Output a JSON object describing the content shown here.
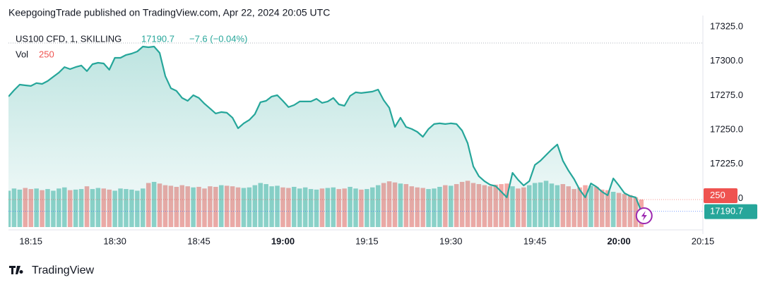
{
  "header": "KeepgoingTrade published on TradingView.com, Apr 22, 2024 20:05 UTC",
  "footer": "TradingView",
  "chart_data": {
    "type": "area",
    "symbol": "US100 CFD, 1, SKILLING",
    "change": "−7.6 (−0.04%)",
    "volume_label": "Vol",
    "color": "#26a69a",
    "up_color": "#8fd3ca",
    "down_color": "#f3a9a6",
    "volume_badge_color": "#ef5350",
    "x": [
      "18:11",
      "18:12",
      "18:13",
      "18:14",
      "18:15",
      "18:16",
      "18:17",
      "18:18",
      "18:19",
      "18:20",
      "18:21",
      "18:22",
      "18:23",
      "18:24",
      "18:25",
      "18:26",
      "18:27",
      "18:28",
      "18:29",
      "18:30",
      "18:31",
      "18:32",
      "18:33",
      "18:34",
      "18:35",
      "18:36",
      "18:37",
      "18:38",
      "18:39",
      "18:40",
      "18:41",
      "18:42",
      "18:43",
      "18:44",
      "18:45",
      "18:46",
      "18:47",
      "18:48",
      "18:49",
      "18:50",
      "18:51",
      "18:52",
      "18:53",
      "18:54",
      "18:55",
      "18:56",
      "18:57",
      "18:58",
      "18:59",
      "19:00",
      "19:01",
      "19:02",
      "19:03",
      "19:04",
      "19:05",
      "19:06",
      "19:07",
      "19:08",
      "19:09",
      "19:10",
      "19:11",
      "19:12",
      "19:13",
      "19:14",
      "19:15",
      "19:16",
      "19:17",
      "19:18",
      "19:19",
      "19:20",
      "19:21",
      "19:22",
      "19:23",
      "19:24",
      "19:25",
      "19:26",
      "19:27",
      "19:28",
      "19:29",
      "19:30",
      "19:31",
      "19:32",
      "19:33",
      "19:34",
      "19:35",
      "19:36",
      "19:37",
      "19:38",
      "19:39",
      "19:40",
      "19:41",
      "19:42",
      "19:43",
      "19:44",
      "19:45",
      "19:46",
      "19:47",
      "19:48",
      "19:49",
      "19:50",
      "19:51",
      "19:52",
      "19:53",
      "19:54",
      "19:55",
      "19:56",
      "19:57",
      "19:58",
      "19:59",
      "20:00",
      "20:01",
      "20:02",
      "20:03",
      "20:04"
    ],
    "values": [
      17274.2,
      17278.8,
      17282.9,
      17282.4,
      17281.9,
      17284.0,
      17283.4,
      17285.5,
      17288.6,
      17291.6,
      17295.7,
      17294.2,
      17295.7,
      17296.8,
      17292.7,
      17297.8,
      17298.8,
      17298.3,
      17293.7,
      17302.4,
      17302.4,
      17304.5,
      17305.5,
      17307.0,
      17310.6,
      17310.1,
      17310.6,
      17306.0,
      17289.1,
      17280.3,
      17278.3,
      17273.2,
      17271.1,
      17275.2,
      17273.2,
      17269.0,
      17265.5,
      17261.9,
      17262.9,
      17262.4,
      17258.8,
      17251.1,
      17254.7,
      17257.2,
      17261.4,
      17270.1,
      17271.1,
      17274.2,
      17275.2,
      17271.1,
      17266.5,
      17268.0,
      17270.6,
      17270.6,
      17270.6,
      17272.6,
      17269.6,
      17270.6,
      17273.2,
      17268.5,
      17267.5,
      17274.7,
      17277.3,
      17276.8,
      17277.3,
      17277.8,
      17279.3,
      17271.6,
      17266.0,
      17252.1,
      17258.8,
      17252.1,
      17250.6,
      17248.5,
      17244.9,
      17250.6,
      17254.2,
      17254.7,
      17254.2,
      17254.7,
      17254.2,
      17249.5,
      17240.3,
      17223.4,
      17216.2,
      17212.6,
      17210.0,
      17209.0,
      17204.9,
      17200.8,
      17218.7,
      17213.6,
      17209.5,
      17212.6,
      17224.4,
      17227.5,
      17231.6,
      17235.7,
      17239.3,
      17227.5,
      17220.3,
      17214.1,
      17206.4,
      17200.8,
      17211.0,
      17208.5,
      17204.9,
      17202.3,
      17214.6,
      17209.5,
      17203.9,
      17201.8,
      17200.8,
      17190.7
    ],
    "volume": [
      330,
      350,
      340,
      355,
      345,
      350,
      335,
      345,
      330,
      350,
      360,
      335,
      340,
      345,
      370,
      345,
      355,
      350,
      340,
      330,
      350,
      345,
      340,
      330,
      350,
      400,
      410,
      395,
      380,
      375,
      365,
      380,
      370,
      360,
      365,
      350,
      370,
      365,
      380,
      375,
      370,
      360,
      355,
      360,
      380,
      400,
      390,
      370,
      375,
      360,
      355,
      365,
      350,
      360,
      345,
      340,
      350,
      355,
      360,
      345,
      350,
      365,
      350,
      340,
      345,
      360,
      380,
      400,
      415,
      405,
      395,
      390,
      370,
      360,
      355,
      345,
      350,
      365,
      380,
      375,
      390,
      410,
      420,
      400,
      390,
      380,
      370,
      385,
      390,
      395,
      370,
      350,
      360,
      380,
      400,
      405,
      420,
      395,
      380,
      390,
      370,
      345,
      360,
      380,
      375,
      365,
      340,
      335,
      320,
      310,
      300,
      290,
      270,
      250
    ],
    "volume_lim": [
      0,
      1920
    ],
    "xlim": [
      "18:11",
      "20:15"
    ],
    "xticks": [
      "18:15",
      "18:30",
      "18:45",
      "19:00",
      "19:15",
      "19:30",
      "19:45",
      "20:00",
      "20:15"
    ],
    "ylim": [
      17179.2,
      17333.2
    ],
    "yticks": [
      {
        "value": 17325,
        "label": "17325.0"
      },
      {
        "value": 17300,
        "label": "17300.0"
      },
      {
        "value": 17275,
        "label": "17275.0"
      },
      {
        "value": 17250,
        "label": "17250.0"
      },
      {
        "value": 17225,
        "label": "17225.0"
      },
      {
        "value": 17200,
        "label": "17200.0"
      }
    ]
  }
}
